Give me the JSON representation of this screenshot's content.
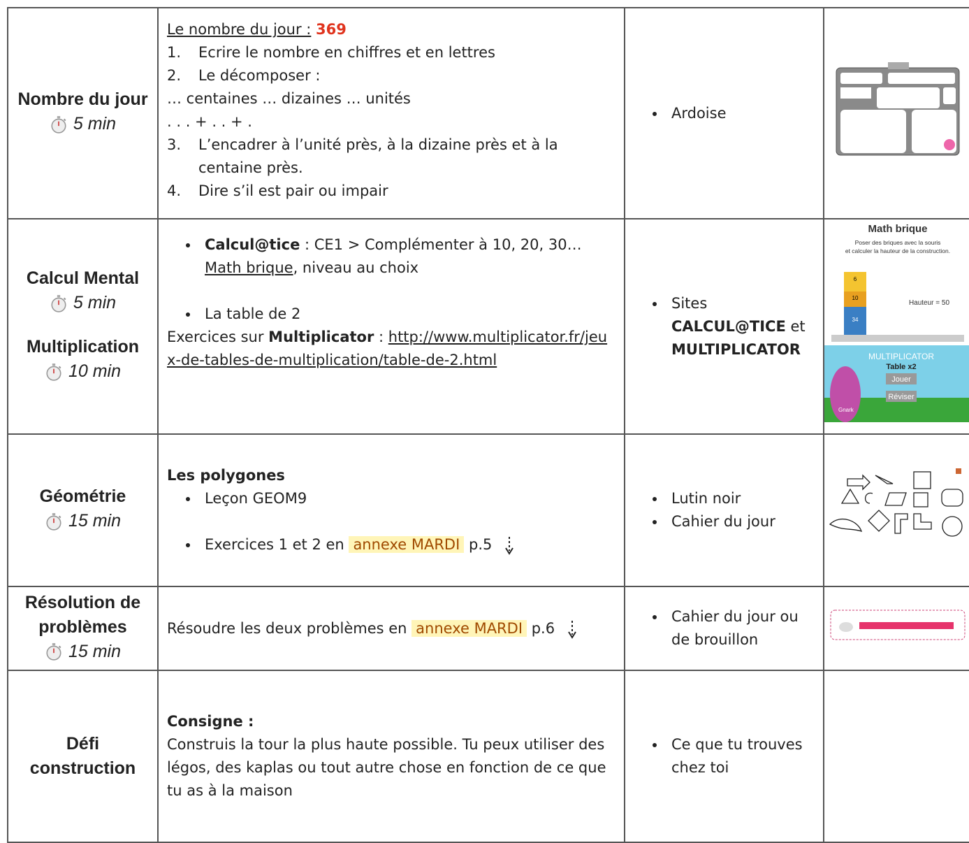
{
  "rows": [
    {
      "activity": "Nombre du jour",
      "duration": "5 min",
      "content": {
        "heading_label": "Le nombre du jour :",
        "number": "369",
        "steps": [
          {
            "marker": "1.",
            "text": "Ecrire le nombre en chiffres et en lettres"
          },
          {
            "marker": "2.",
            "text": "Le décomposer :"
          },
          {
            "marker": "3.",
            "text": "L’encadrer à l’unité près, à la dizaine près et à la centaine près."
          },
          {
            "marker": "4.",
            "text": "Dire s’il est pair ou impair"
          }
        ],
        "lines": [
          "… centaines … dizaines … unités",
          ". . . + . . + ."
        ]
      },
      "material": [
        "Ardoise"
      ]
    },
    {
      "activities": [
        {
          "activity": "Calcul Mental",
          "duration": "5 min"
        },
        {
          "activity": "Multiplication",
          "duration": "10 min"
        }
      ],
      "content": {
        "item1": {
          "bold": "Calcul@tice",
          "text": " : CE1 > Complémenter à 10, 20, 30… ",
          "link": "Math brique",
          "after": ", niveau au choix"
        },
        "item2": "La table de 2",
        "exercise": {
          "text": "Exercices sur ",
          "bold": "Multiplicator",
          "sep": " : ",
          "url": "http://www.multiplicator.fr/jeux-de-tables-de-multiplication/table-de-2.html"
        }
      },
      "material": {
        "text": "Sites",
        "site1": "CALCUL@TICE",
        "joiner": "et",
        "site2": "MULTIPLICATOR"
      },
      "images": [
        {
          "title": "Math brique",
          "line1": "Poser des briques avec la souris",
          "line2": "et calculer la hauteur de la construction.",
          "bricks": [
            "6",
            "10",
            "34"
          ],
          "result": "Hauteur = 50"
        },
        {
          "title": "MULTIPLICATOR",
          "subtitle": "Table x2",
          "button1": "Jouer",
          "button2": "Réviser",
          "character": "Gnark"
        }
      ]
    },
    {
      "activity": "Géométrie",
      "duration": "15 min",
      "content": {
        "heading": "Les polygones",
        "item1": "Leçon GEOM9",
        "item2": {
          "text": "Exercices 1 et 2 en",
          "highlight": "annexe MARDI",
          "page": "p.5"
        }
      },
      "material": [
        "Lutin noir",
        "Cahier du jour"
      ]
    },
    {
      "activity": "Résolution de problèmes",
      "duration": "15 min",
      "content": {
        "text": "Résoudre les deux problèmes en",
        "highlight": "annexe MARDI",
        "page": "p.6"
      },
      "material": [
        "Cahier du jour ou de brouillon"
      ]
    },
    {
      "activity": "Défi construction",
      "content": {
        "heading": "Consigne :",
        "text": "Construis la tour la plus haute possible. Tu peux utiliser des légos, des kaplas ou tout autre chose en fonction de ce que tu as à la maison"
      },
      "material": [
        "Ce que tu trouves chez toi"
      ]
    }
  ]
}
